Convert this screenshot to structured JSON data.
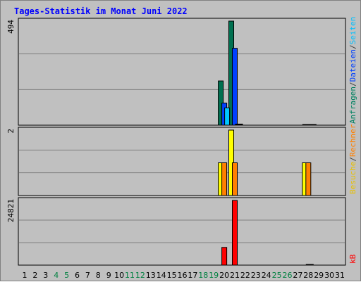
{
  "chart_data": {
    "type": "bar",
    "title": "Tages-Statistik im Monat Juni 2022",
    "days": [
      "1",
      "2",
      "3",
      "4",
      "5",
      "6",
      "7",
      "8",
      "9",
      "10",
      "11",
      "12",
      "13",
      "14",
      "15",
      "16",
      "17",
      "18",
      "19",
      "20",
      "21",
      "22",
      "23",
      "24",
      "25",
      "26",
      "27",
      "28",
      "29",
      "30",
      "31"
    ],
    "weekend_days": [
      "4",
      "5",
      "11",
      "12",
      "18",
      "19",
      "25",
      "26"
    ],
    "panels": [
      {
        "id": "hits",
        "max_label": "494",
        "ylim": [
          0,
          494
        ],
        "legend": [
          {
            "text": "Anfragen",
            "color": "#008060"
          },
          {
            "text": "/",
            "color": "#404040"
          },
          {
            "text": "Dateien",
            "color": "#0040ff"
          },
          {
            "text": "/",
            "color": "#404040"
          },
          {
            "text": "Seiten",
            "color": "#00c0ff"
          }
        ],
        "series": [
          {
            "name": "Anfragen",
            "color": "#007050",
            "values": {
              "20": 210,
              "21": 494,
              "28": 3
            }
          },
          {
            "name": "Dateien",
            "color": "#0040ff",
            "values": {
              "20": 105,
              "21": 365,
              "28": 3
            }
          },
          {
            "name": "Seiten",
            "color": "#00c8ff",
            "values": {
              "20": 82,
              "21": 7,
              "28": 3
            }
          }
        ]
      },
      {
        "id": "visits",
        "max_label": "2",
        "ylim": [
          0,
          2
        ],
        "legend": [
          {
            "text": "Besuche",
            "color": "#e8c000"
          },
          {
            "text": "/",
            "color": "#404040"
          },
          {
            "text": "Rechner",
            "color": "#ff8000"
          }
        ],
        "series": [
          {
            "name": "Besuche",
            "color": "#ffff00",
            "values": {
              "20": 1,
              "21": 2,
              "28": 1
            }
          },
          {
            "name": "Rechner",
            "color": "#ff8000",
            "values": {
              "20": 1,
              "21": 1,
              "28": 1
            }
          }
        ]
      },
      {
        "id": "kbytes",
        "max_label": "24821",
        "ylim": [
          0,
          24821
        ],
        "legend": [
          {
            "text": "kB",
            "color": "#ff0000"
          }
        ],
        "series": [
          {
            "name": "kB",
            "color": "#ff0000",
            "values": {
              "20": 6800,
              "21": 24821,
              "28": 300
            }
          }
        ]
      }
    ]
  }
}
